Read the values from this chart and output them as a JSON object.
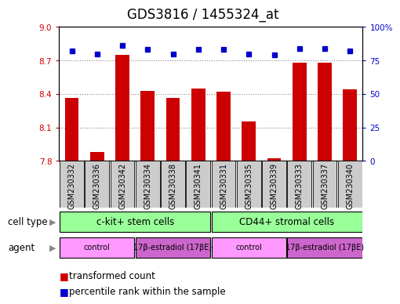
{
  "title": "GDS3816 / 1455324_at",
  "samples": [
    "GSM230332",
    "GSM230336",
    "GSM230342",
    "GSM230334",
    "GSM230338",
    "GSM230341",
    "GSM230331",
    "GSM230335",
    "GSM230339",
    "GSM230333",
    "GSM230337",
    "GSM230340"
  ],
  "transformed_counts": [
    8.36,
    7.88,
    8.75,
    8.43,
    8.36,
    8.45,
    8.42,
    8.15,
    7.82,
    8.68,
    8.68,
    8.44
  ],
  "percentile_ranks": [
    82,
    80,
    86,
    83,
    80,
    83,
    83,
    80,
    79,
    84,
    84,
    82
  ],
  "ylim_left": [
    7.8,
    9.0
  ],
  "ylim_right": [
    0,
    100
  ],
  "yticks_left": [
    7.8,
    8.1,
    8.4,
    8.7,
    9.0
  ],
  "yticks_right": [
    0,
    25,
    50,
    75,
    100
  ],
  "bar_color": "#cc0000",
  "dot_color": "#0000cc",
  "cell_type_labels": [
    "c-kit+ stem cells",
    "CD44+ stromal cells"
  ],
  "cell_type_color": "#99ff99",
  "agent_labels": [
    "control",
    "17β-estradiol (17βE)",
    "control",
    "17β-estradiol (17βE)"
  ],
  "agent_color_control": "#ff99ff",
  "agent_color_estradiol": "#cc66cc",
  "legend_red": "transformed count",
  "legend_blue": "percentile rank within the sample",
  "grid_color": "#888888",
  "sample_cell_color": "#cccccc",
  "title_fontsize": 12,
  "tick_fontsize": 7.5,
  "label_fontsize": 8.5,
  "sample_fontsize": 7
}
